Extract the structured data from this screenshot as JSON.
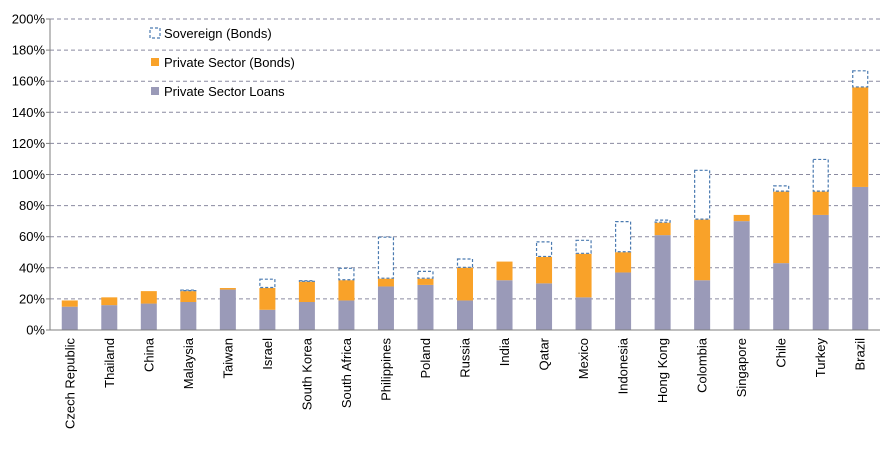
{
  "chart_data": {
    "type": "bar",
    "stacked": true,
    "categories": [
      "Czech Republic",
      "Thailand",
      "China",
      "Malaysia",
      "Taiwan",
      "Israel",
      "South Korea",
      "South Africa",
      "Philippines",
      "Poland",
      "Russia",
      "India",
      "Qatar",
      "Mexico",
      "Indonesia",
      "Hong Kong",
      "Colombia",
      "Singapore",
      "Chile",
      "Turkey",
      "Brazil"
    ],
    "series": [
      {
        "name": "Private Sector Loans",
        "color": "#9a9ab8",
        "style": "solid",
        "values": [
          15,
          16,
          17,
          18,
          26,
          13,
          18,
          19,
          28,
          29,
          19,
          32,
          30,
          21,
          37,
          61,
          32,
          70,
          43,
          74,
          92
        ]
      },
      {
        "name": "Private Sector (Bonds)",
        "color": "#f9a229",
        "style": "solid",
        "values": [
          4,
          5,
          8,
          7,
          1,
          14,
          13,
          13,
          5,
          4,
          21,
          12,
          17,
          28,
          13,
          8,
          39,
          4,
          46,
          15,
          64
        ]
      },
      {
        "name": "Sovereign (Bonds)",
        "color": "#4a7ab0",
        "style": "dashed-outline",
        "values": [
          0,
          0,
          0,
          1,
          0,
          6,
          1,
          8,
          27,
          5,
          6,
          0,
          10,
          9,
          20,
          2,
          32,
          0,
          4,
          21,
          11
        ]
      }
    ],
    "ylim": [
      0,
      200
    ],
    "ytick_step": 20,
    "ytick_labels": [
      "0%",
      "20%",
      "40%",
      "60%",
      "80%",
      "100%",
      "120%",
      "140%",
      "160%",
      "180%",
      "200%"
    ],
    "grid": "horizontal-dashed",
    "legend": {
      "placement": "top-left",
      "entries": [
        "Sovereign (Bonds)",
        "Private Sector (Bonds)",
        "Private Sector Loans"
      ]
    },
    "title": "",
    "xlabel": "",
    "ylabel": ""
  }
}
